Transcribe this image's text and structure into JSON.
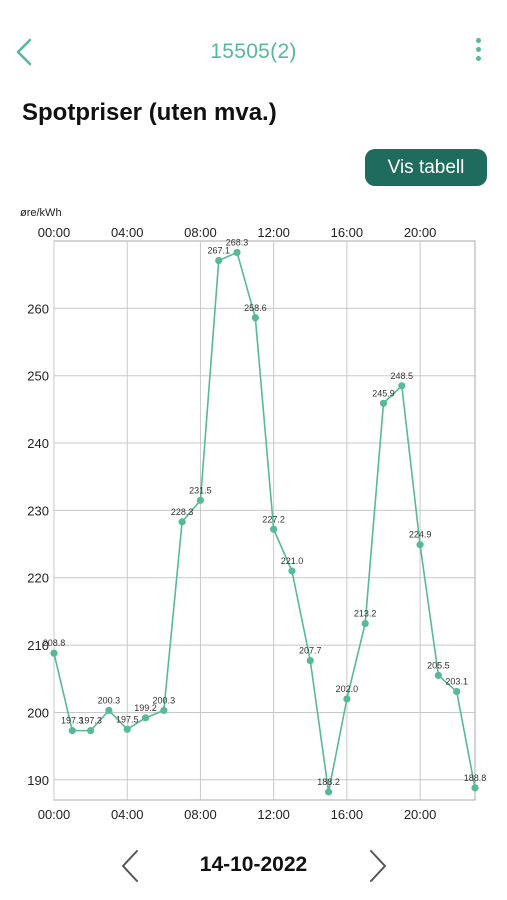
{
  "header": {
    "title": "15505(2)"
  },
  "page": {
    "heading": "Spotpriser (uten mva.)",
    "table_button": "Vis tabell"
  },
  "date_nav": {
    "date": "14-10-2022"
  },
  "colors": {
    "accent": "#57b89a",
    "button": "#1f6b5d",
    "grid": "#c8c8c8"
  },
  "chart_data": {
    "type": "line",
    "ylabel": "øre/kWh",
    "x": [
      0,
      1,
      2,
      3,
      4,
      5,
      6,
      7,
      8,
      9,
      10,
      11,
      12,
      13,
      14,
      15,
      16,
      17,
      18,
      19,
      20,
      21,
      22,
      23
    ],
    "values": [
      208.8,
      197.3,
      197.3,
      200.3,
      197.5,
      199.2,
      200.3,
      228.3,
      231.5,
      267.1,
      268.3,
      258.6,
      227.2,
      221.0,
      207.7,
      188.2,
      202.0,
      213.2,
      245.9,
      248.5,
      224.9,
      205.5,
      203.1,
      188.8
    ],
    "value_labels": [
      "208.8",
      "197.3",
      "197.3",
      "200.3",
      "197.5",
      "199.2",
      "200.3",
      "228.3",
      "231.5",
      "267.1",
      "268.3",
      "258.6",
      "227.2",
      "221.0",
      "207.7",
      "188.2",
      "202.0",
      "213.2",
      "245.9",
      "248.5",
      "224.9",
      "205.5",
      "203.1",
      "188.8"
    ],
    "x_ticks": [
      0,
      4,
      8,
      12,
      16,
      20
    ],
    "x_tick_labels": [
      "00:00",
      "04:00",
      "08:00",
      "12:00",
      "16:00",
      "20:00"
    ],
    "y_ticks": [
      190,
      200,
      210,
      220,
      230,
      240,
      250,
      260
    ],
    "y_tick_labels": [
      "190",
      "200",
      "210",
      "220",
      "230",
      "240",
      "250",
      "260"
    ],
    "ylim": [
      187,
      270
    ],
    "xlim": [
      0,
      23
    ],
    "grid": true,
    "color": "#57b89a"
  }
}
